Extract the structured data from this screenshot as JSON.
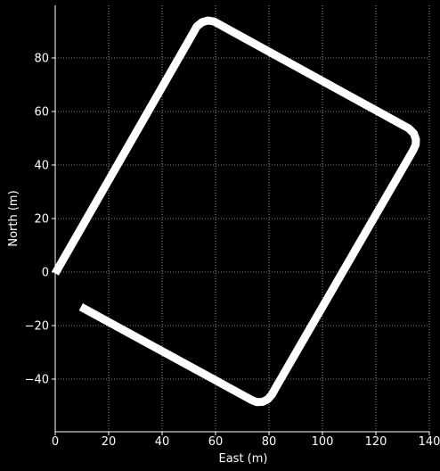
{
  "chart_data": {
    "type": "line",
    "xlabel": "East (m)",
    "ylabel": "North (m)",
    "xlim": [
      0,
      140
    ],
    "ylim": [
      -60,
      100
    ],
    "xticks": [
      0,
      20,
      40,
      60,
      80,
      100,
      120,
      140
    ],
    "yticks": [
      -40,
      -20,
      0,
      20,
      40,
      60,
      80
    ],
    "xtick_labels": [
      "0",
      "20",
      "40",
      "60",
      "80",
      "100",
      "120",
      "140"
    ],
    "ytick_labels": [
      "−40",
      "−20",
      "0",
      "20",
      "40",
      "60",
      "80"
    ],
    "grid": true,
    "colors": {
      "background": "#000000",
      "foreground": "#ffffff",
      "grid": "#b0b0b0",
      "series": "#ffffff"
    },
    "series": [
      {
        "x": [
          0,
          51.6,
          53.0,
          55.0,
          57.2,
          59.5,
          132.3,
          134.2,
          135.0,
          134.9,
          134.0,
          82.4,
          81.2,
          79.6,
          77.6,
          75.5,
          73.5,
          9.6
        ],
        "y": [
          -0.5,
          89.3,
          91.8,
          93.4,
          94.0,
          93.6,
          53.7,
          51.8,
          49.5,
          47.6,
          45.6,
          -43.4,
          -45.6,
          -47.5,
          -48.5,
          -48.6,
          -47.8,
          -13.0
        ]
      }
    ]
  }
}
